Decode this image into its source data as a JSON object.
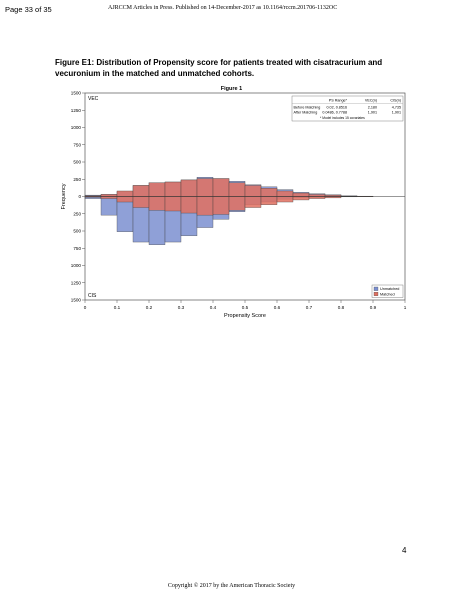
{
  "page": {
    "page_number": "Page 33 of 35",
    "header_note": "AJRCCM Articles in Press. Published on 14-December-2017 as 10.1164/rccm.201706-1132OC",
    "caption": "Figure E1: Distribution of Propensity score for patients treated with cisatracurium and vecuronium in the matched and unmatched cohorts.",
    "bottom_page_number": "4",
    "copyright": "Copyright © 2017 by the American Thoracic Society"
  },
  "chart_data": {
    "type": "bar",
    "title": "Figure 1",
    "xlabel": "Propensity Score",
    "ylabel": "Frequency",
    "xlim": [
      0,
      1
    ],
    "ylim": [
      -1500,
      1500
    ],
    "x_ticks": [
      "0",
      "0.1",
      "0.2",
      "0.3",
      "0.4",
      "0.5",
      "0.6",
      "0.7",
      "0.8",
      "0.9",
      "1"
    ],
    "y_ticks": [
      {
        "value": 1500,
        "label": "1500"
      },
      {
        "value": 1250,
        "label": "1250"
      },
      {
        "value": 1000,
        "label": "1000"
      },
      {
        "value": 750,
        "label": "750"
      },
      {
        "value": 500,
        "label": "500"
      },
      {
        "value": 250,
        "label": "250"
      },
      {
        "value": 0,
        "label": "0"
      },
      {
        "value": -250,
        "label": "250"
      },
      {
        "value": -500,
        "label": "500"
      },
      {
        "value": -750,
        "label": "750"
      },
      {
        "value": -1000,
        "label": "1000"
      },
      {
        "value": -1250,
        "label": "1250"
      },
      {
        "value": -1500,
        "label": "1500"
      }
    ],
    "group_labels": {
      "top": "VEC",
      "bottom": "CIS"
    },
    "bin_width": 0.05,
    "bin_starts": [
      0,
      0.05,
      0.1,
      0.15,
      0.2,
      0.25,
      0.3,
      0.35,
      0.4,
      0.45,
      0.5,
      0.55,
      0.6,
      0.65,
      0.7,
      0.75,
      0.8,
      0.85
    ],
    "series": [
      {
        "name": "Unmatched",
        "color": "#7b8fd0",
        "top_values": [
          20,
          30,
          70,
          160,
          200,
          210,
          240,
          280,
          260,
          220,
          170,
          140,
          100,
          60,
          40,
          25,
          10,
          5
        ],
        "bottom_values": [
          30,
          270,
          510,
          660,
          700,
          660,
          570,
          450,
          330,
          220,
          120,
          80,
          40,
          20,
          10,
          5,
          3,
          0
        ]
      },
      {
        "name": "Matched",
        "color": "#e07060",
        "top_values": [
          10,
          30,
          80,
          160,
          200,
          210,
          240,
          260,
          260,
          200,
          160,
          120,
          80,
          50,
          30,
          20,
          5,
          2
        ],
        "bottom_values": [
          10,
          30,
          80,
          160,
          200,
          210,
          240,
          270,
          260,
          200,
          160,
          120,
          80,
          50,
          30,
          20,
          5,
          2
        ]
      }
    ],
    "legend": {
      "position": "bottom-right",
      "entries": [
        {
          "label": "Unmatched",
          "color": "#7b8fd0"
        },
        {
          "label": "Matched",
          "color": "#e07060"
        }
      ]
    },
    "inset_table": {
      "position": "top-right",
      "headers": [
        "",
        "PS Range*",
        "VEC(n)",
        "CIS(n)"
      ],
      "rows": [
        [
          "Before Matching",
          "0.02, 0.8516",
          "2,180",
          "4,735"
        ],
        [
          "After Matching",
          "0.0486, 0.7788",
          "1,901",
          "1,901"
        ]
      ],
      "footnote": "* Model includes 15 covariates"
    }
  }
}
